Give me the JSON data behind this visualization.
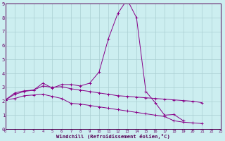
{
  "xlabel": "Windchill (Refroidissement éolien,°C)",
  "xlim": [
    0,
    23
  ],
  "ylim": [
    0,
    9
  ],
  "xticks": [
    0,
    1,
    2,
    3,
    4,
    5,
    6,
    7,
    8,
    9,
    10,
    11,
    12,
    13,
    14,
    15,
    16,
    17,
    18,
    19,
    20,
    21,
    22,
    23
  ],
  "yticks": [
    0,
    1,
    2,
    3,
    4,
    5,
    6,
    7,
    8,
    9
  ],
  "bg_color": "#cceef0",
  "grid_color": "#aacfd2",
  "line_color": "#880088",
  "series": [
    [
      2.1,
      2.6,
      2.75,
      2.8,
      3.3,
      2.95,
      3.2,
      3.2,
      3.1,
      3.3,
      4.1,
      6.5,
      8.3,
      9.3,
      8.0,
      2.7,
      1.9,
      1.0,
      1.05,
      0.6,
      null,
      null,
      null,
      null
    ],
    [
      2.1,
      2.5,
      2.7,
      2.8,
      3.1,
      3.0,
      3.05,
      2.9,
      2.8,
      2.7,
      2.6,
      2.5,
      2.4,
      2.35,
      2.3,
      2.25,
      2.2,
      2.15,
      2.1,
      2.05,
      2.0,
      1.9,
      null,
      null
    ],
    [
      2.1,
      2.2,
      2.4,
      2.45,
      2.5,
      2.35,
      2.2,
      1.85,
      1.8,
      1.7,
      1.6,
      1.5,
      1.4,
      1.3,
      1.2,
      1.1,
      1.0,
      0.9,
      0.6,
      0.5,
      0.45,
      0.4,
      null,
      null
    ]
  ]
}
